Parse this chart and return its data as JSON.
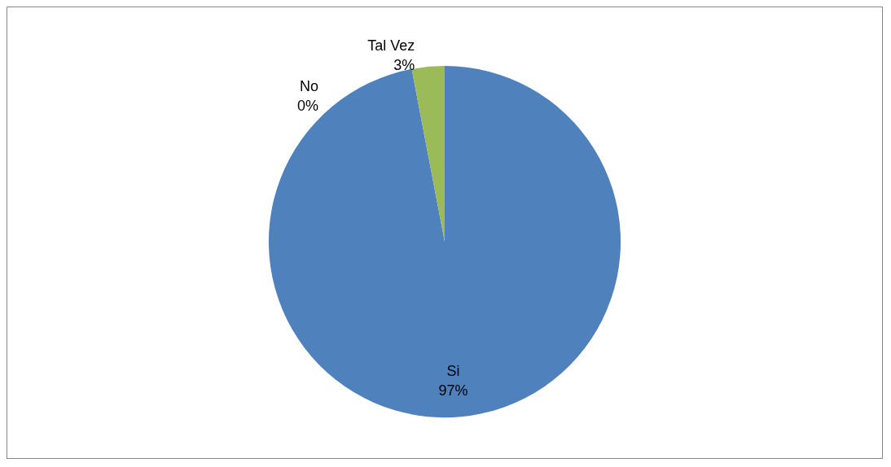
{
  "chart_data": {
    "type": "pie",
    "categories": [
      "Si",
      "No",
      "Tal Vez"
    ],
    "values": [
      97,
      0,
      3
    ],
    "colors": [
      "#4f81bd",
      "#c0504d",
      "#9bbb59"
    ],
    "value_labels": [
      "97%",
      "0%",
      "3%"
    ]
  }
}
